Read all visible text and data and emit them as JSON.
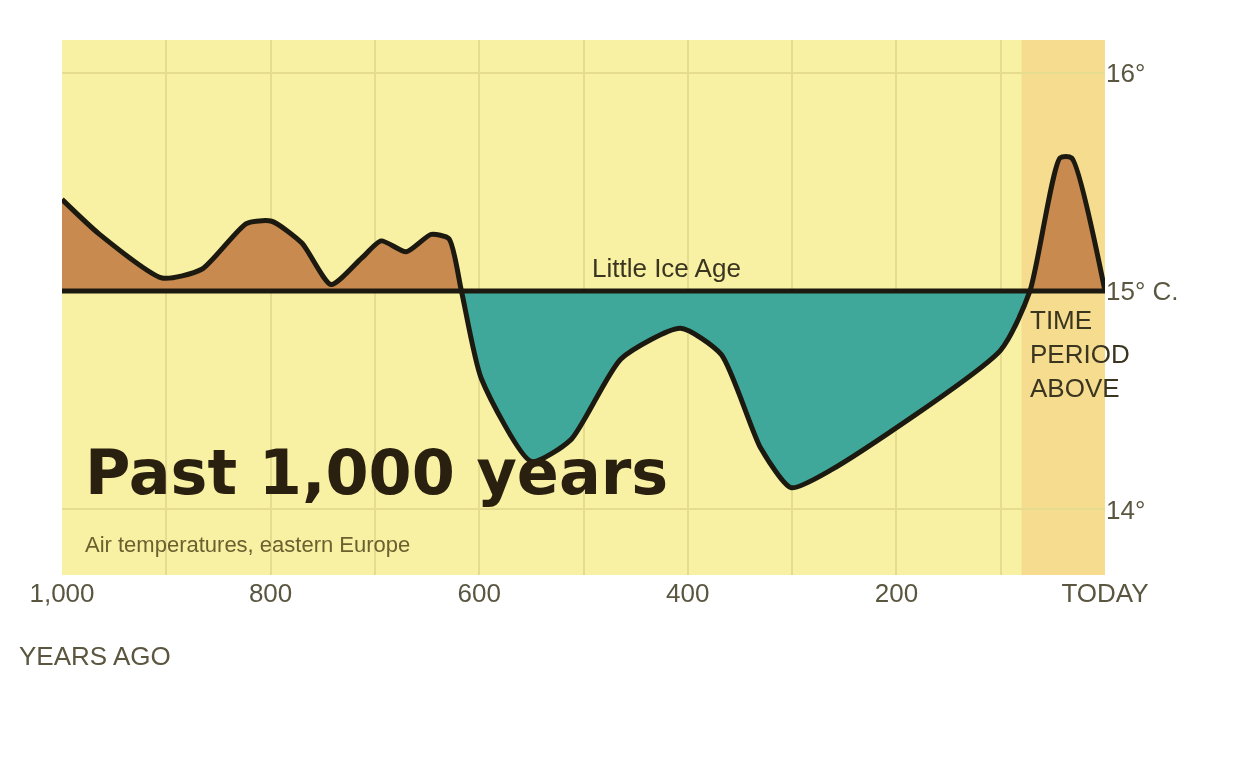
{
  "chart_data": {
    "type": "area",
    "title": "Past 1,000 years",
    "subtitle": "Air temperatures, eastern Europe",
    "x": [
      1000,
      964,
      904,
      866,
      823,
      799,
      770,
      742,
      713,
      694,
      670,
      646,
      629,
      617,
      598,
      550,
      512,
      464,
      407,
      368,
      330,
      301,
      263,
      100,
      72,
      43,
      32,
      0
    ],
    "series": [
      {
        "color": "#1c1a10",
        "values": [
          15.42,
          15.26,
          15.06,
          15.1,
          15.31,
          15.32,
          15.22,
          15.03,
          15.15,
          15.23,
          15.18,
          15.26,
          15.24,
          15.0,
          14.6,
          14.22,
          14.32,
          14.69,
          14.83,
          14.71,
          14.28,
          14.1,
          14.18,
          14.73,
          15.0,
          15.61,
          15.61,
          15.0
        ]
      }
    ],
    "xlim": [
      1000,
      0
    ],
    "ylim": [
      13.7,
      16.15
    ],
    "xlabel": "YEARS AGO",
    "xticks": [
      {
        "value": 1000,
        "label": "1,000"
      },
      {
        "value": 900,
        "label": null
      },
      800,
      {
        "value": 700,
        "label": null
      },
      600,
      {
        "value": 500,
        "label": null
      },
      400,
      {
        "value": 300,
        "label": null
      },
      200,
      {
        "value": 100,
        "label": null
      },
      {
        "value": 0,
        "label": "TODAY"
      }
    ],
    "yticks": [
      {
        "value": 14,
        "label": "14°"
      },
      {
        "value": 15,
        "label": "15° C."
      },
      {
        "value": 16,
        "label": "16°"
      }
    ],
    "ref_lines": [
      {
        "axis": "y",
        "value": 15,
        "label": null,
        "color": "#1c1a10"
      }
    ],
    "bands": [
      {
        "axis": "x",
        "from": 80,
        "to": 0,
        "label": "TIME\nPERIOD\nABOVE",
        "color": "#f0b060"
      }
    ],
    "annotations": [
      {
        "text": "Little Ice Age",
        "x": 420,
        "y": 15.0
      }
    ],
    "grid": true
  }
}
